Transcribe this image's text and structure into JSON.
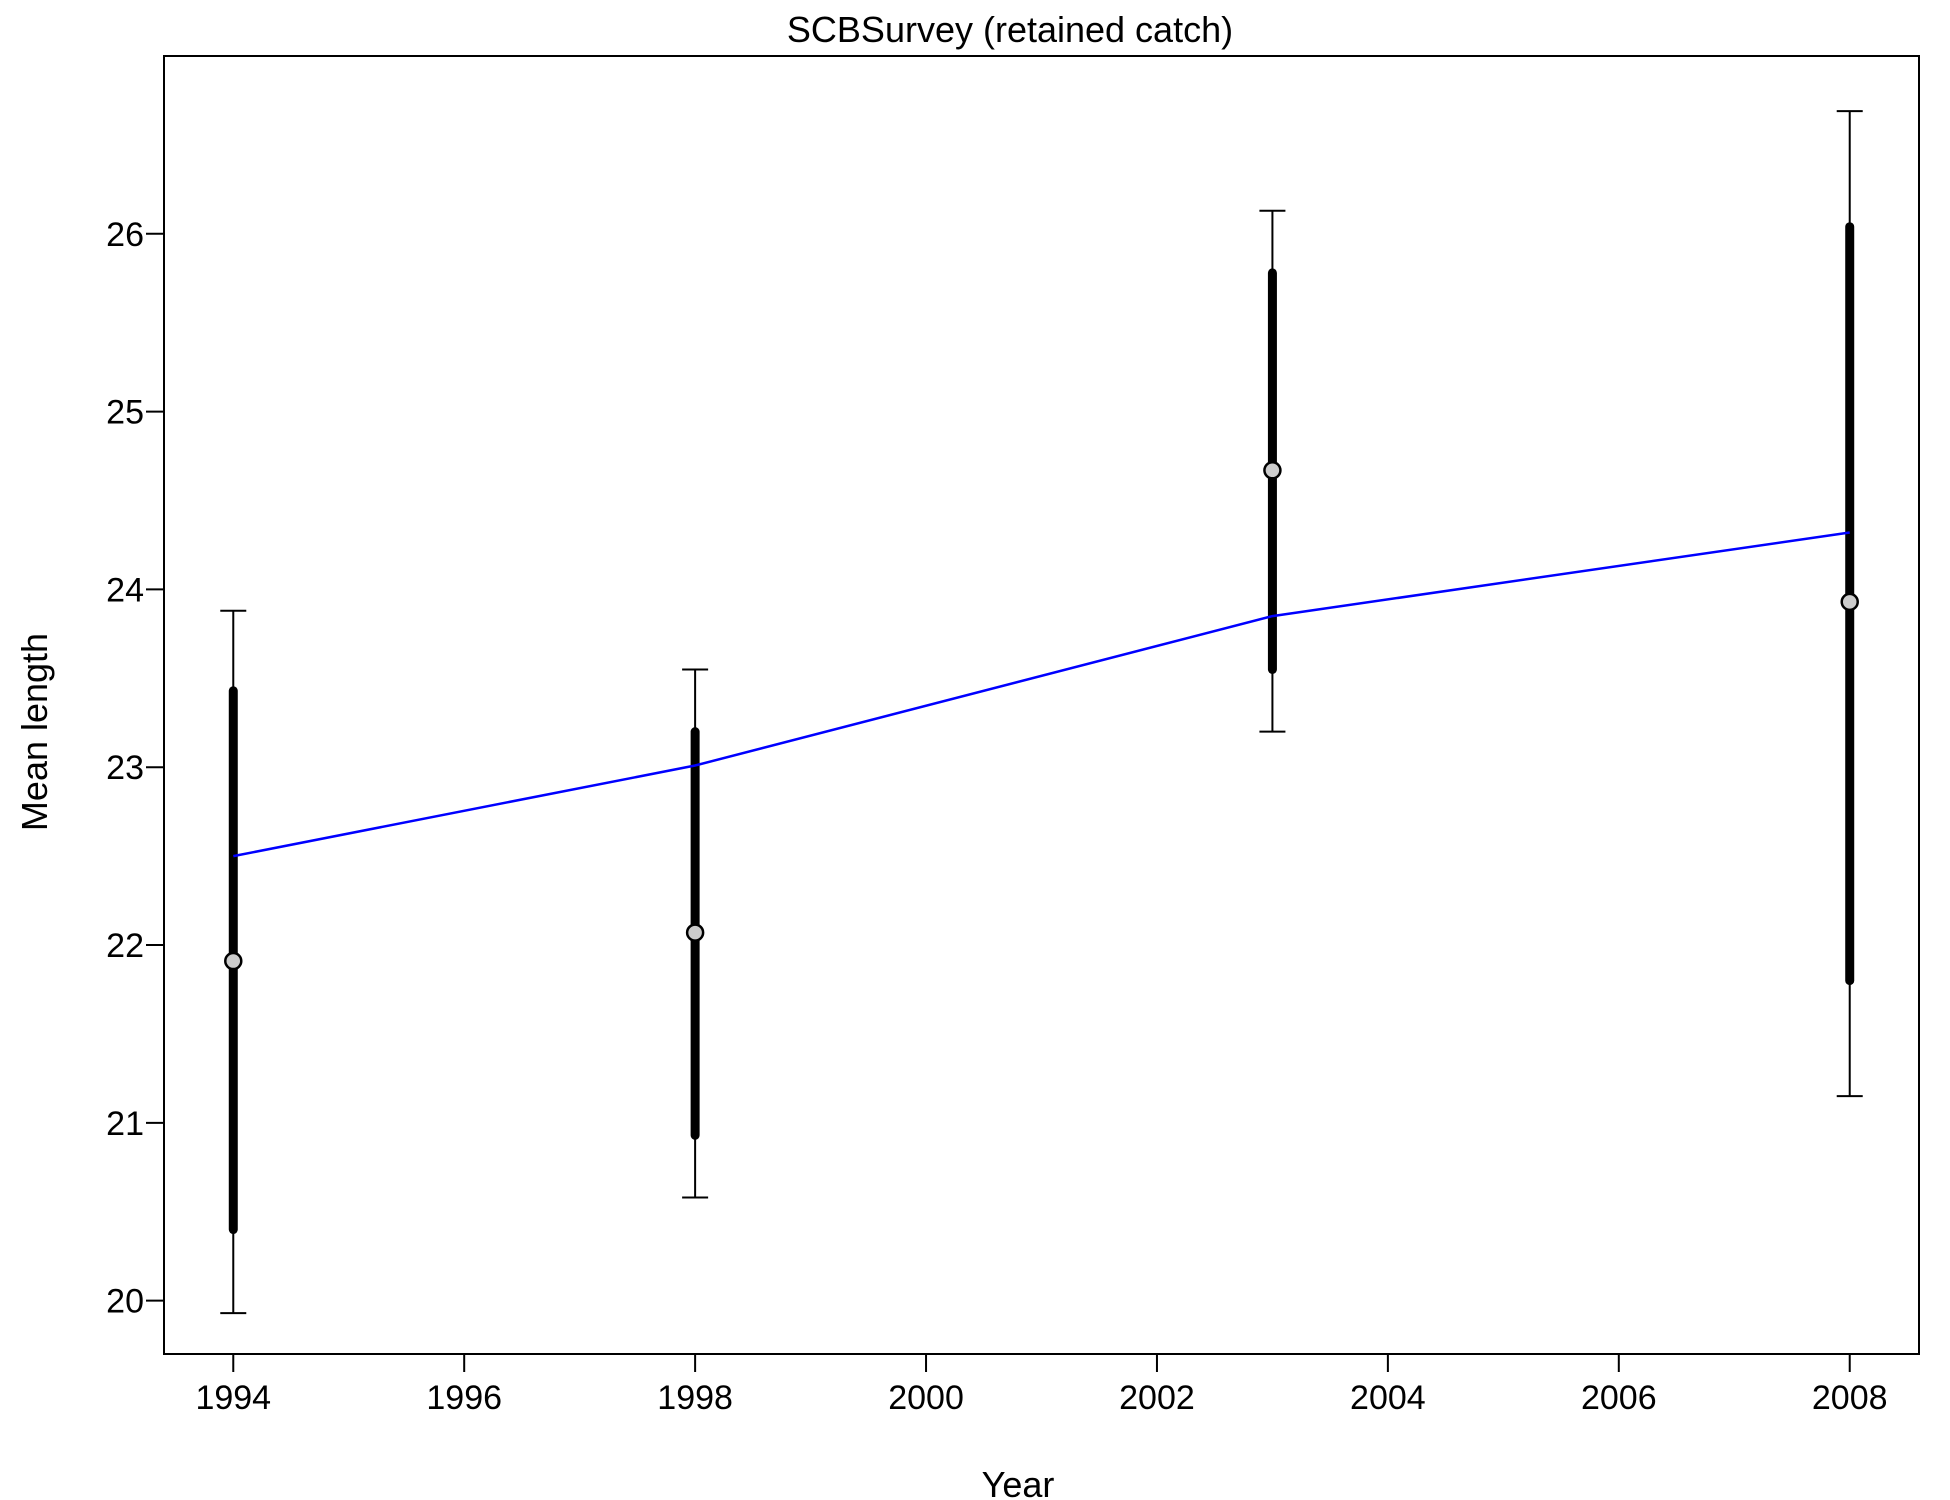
{
  "chart_data": {
    "type": "scatter",
    "title": "SCBSurvey (retained catch)",
    "xlabel": "Year",
    "ylabel": "Mean length",
    "xlim": [
      1993.4,
      2008.6
    ],
    "ylim": [
      19.7,
      27.0
    ],
    "x_ticks": [
      1994,
      1996,
      1998,
      2000,
      2002,
      2004,
      2006,
      2008
    ],
    "y_ticks": [
      20,
      21,
      22,
      23,
      24,
      25,
      26
    ],
    "grid": false,
    "legend": "none",
    "observed": {
      "x": [
        1994,
        1998,
        2003,
        2008
      ],
      "y": [
        21.91,
        22.07,
        24.67,
        23.93
      ],
      "inner_low": [
        20.4,
        20.93,
        23.55,
        21.8
      ],
      "inner_high": [
        23.43,
        23.2,
        25.78,
        26.04
      ],
      "outer_low": [
        19.93,
        20.58,
        23.2,
        21.15
      ],
      "outer_high": [
        23.88,
        23.55,
        26.13,
        26.69
      ]
    },
    "expected": {
      "x": [
        1994,
        1998,
        2003,
        2008
      ],
      "y": [
        22.5,
        23.01,
        23.85,
        24.32
      ]
    },
    "colors": {
      "expected_line": "#0000ff",
      "points_fill": "#cccccc",
      "error_bars": "#000000"
    }
  }
}
